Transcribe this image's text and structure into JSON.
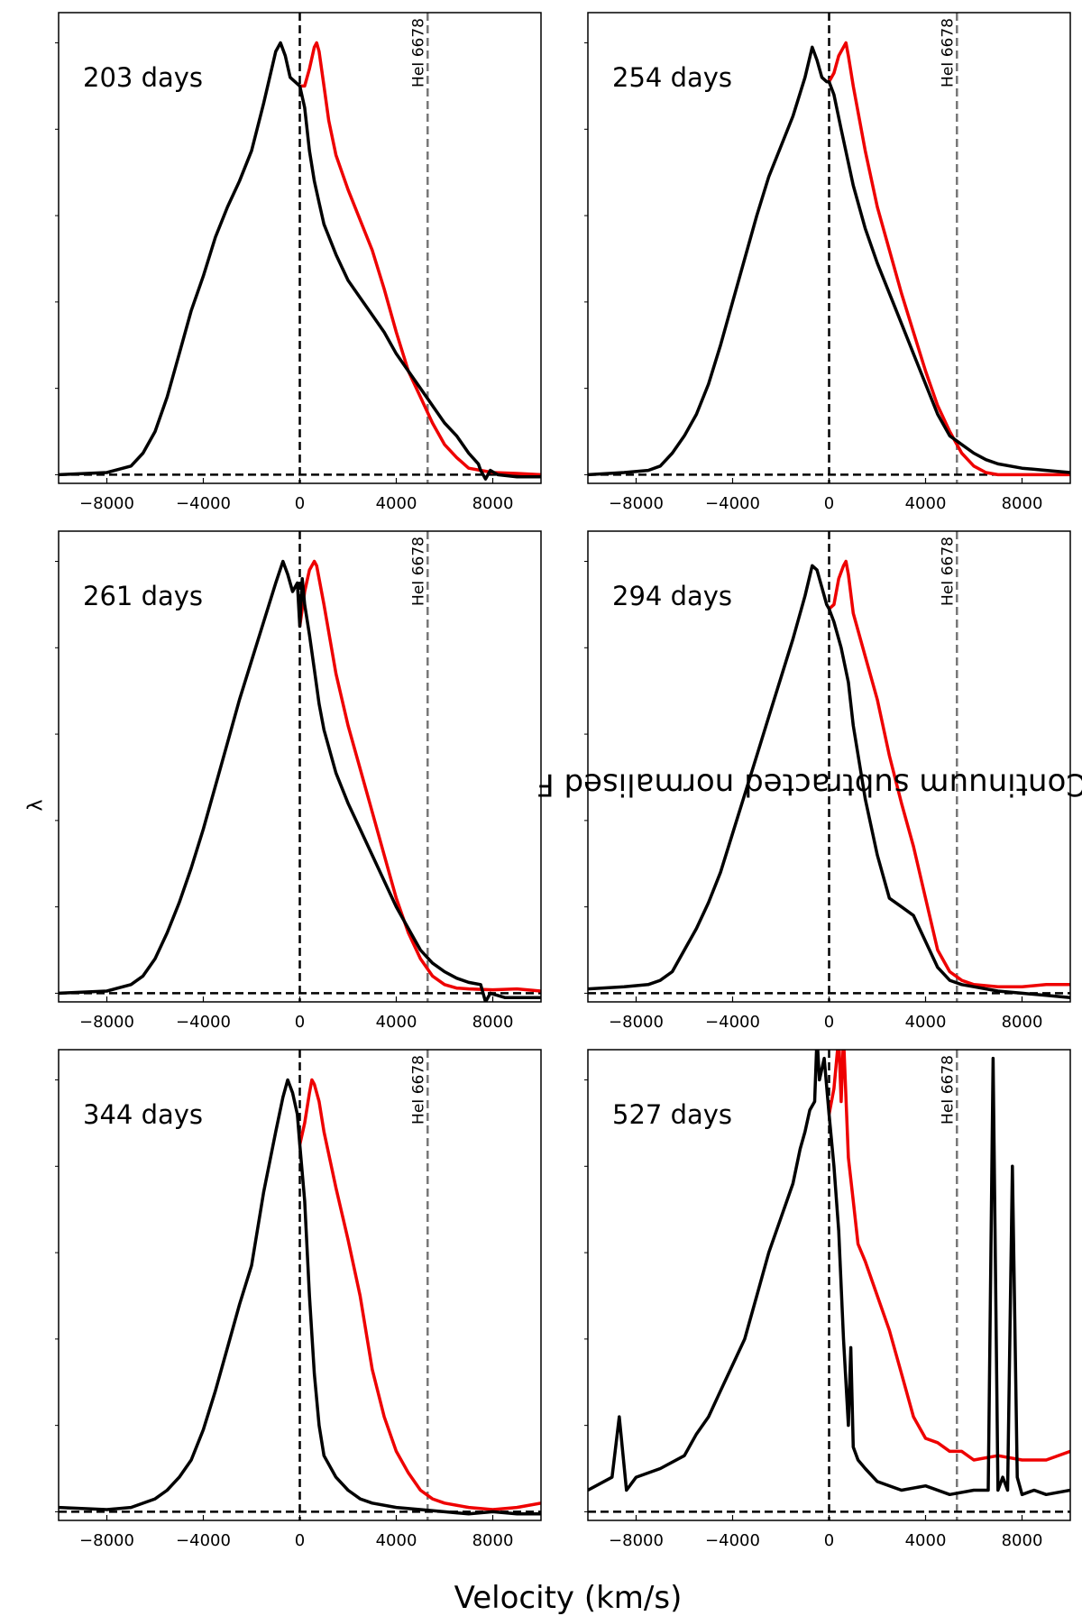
{
  "chart_data": {
    "type": "line",
    "layout": "3x2 grid of panels",
    "ylabel_main": "Continuum subtracted normalised F",
    "ylabel_sub": "λ",
    "xlabel": "Velocity (km/s)",
    "xlim": [
      -10000,
      10000
    ],
    "ylim": [
      -0.02,
      1.07
    ],
    "xticks": [
      -8000,
      -4000,
      0,
      4000,
      8000
    ],
    "xtick_labels": [
      "−8000",
      "−4000",
      "0",
      "4000",
      "8000"
    ],
    "reference_line": {
      "label": "HeI 6678",
      "velocity": 5300,
      "color": "#777777",
      "style": "dashed"
    },
    "zero_lines": {
      "x": 0,
      "y": 0,
      "color": "#000000",
      "style": "dashed"
    },
    "series_colors": {
      "black": "#000000",
      "red": "#ee0000"
    },
    "panels": [
      {
        "label": "203 days",
        "series": [
          {
            "color": "black",
            "x": [
              -10000,
              -8000,
              -7000,
              -6500,
              -6000,
              -5500,
              -5000,
              -4500,
              -4000,
              -3500,
              -3000,
              -2500,
              -2000,
              -1500,
              -1000,
              -800,
              -600,
              -400,
              -200,
              0,
              200,
              400,
              600,
              800,
              1000,
              1500,
              2000,
              2500,
              3000,
              3500,
              4000,
              4500,
              5000,
              5500,
              6000,
              6500,
              7000,
              7400,
              7500,
              7700,
              7900,
              8200,
              9000,
              10000
            ],
            "y": [
              0,
              0.005,
              0.02,
              0.05,
              0.1,
              0.18,
              0.28,
              0.38,
              0.46,
              0.55,
              0.62,
              0.68,
              0.75,
              0.86,
              0.98,
              1.0,
              0.97,
              0.92,
              0.91,
              0.9,
              0.85,
              0.75,
              0.68,
              0.63,
              0.58,
              0.51,
              0.45,
              0.41,
              0.37,
              0.33,
              0.28,
              0.24,
              0.2,
              0.16,
              0.12,
              0.09,
              0.05,
              0.025,
              0.01,
              -0.01,
              0.01,
              0.0,
              -0.005,
              -0.005
            ]
          },
          {
            "color": "red",
            "x": [
              0,
              200,
              400,
              600,
              700,
              800,
              1000,
              1200,
              1500,
              2000,
              2500,
              3000,
              3500,
              4000,
              4500,
              5000,
              5500,
              6000,
              6500,
              7000,
              8000,
              9000,
              10000
            ],
            "y": [
              0.9,
              0.9,
              0.94,
              0.99,
              1.0,
              0.98,
              0.9,
              0.82,
              0.74,
              0.66,
              0.59,
              0.52,
              0.43,
              0.33,
              0.24,
              0.18,
              0.12,
              0.07,
              0.04,
              0.015,
              0.005,
              0.003,
              0.0
            ]
          }
        ]
      },
      {
        "label": "254 days",
        "series": [
          {
            "color": "black",
            "x": [
              -10000,
              -8500,
              -7500,
              -7000,
              -6500,
              -6000,
              -5500,
              -5000,
              -4500,
              -4000,
              -3500,
              -3000,
              -2500,
              -2000,
              -1500,
              -1000,
              -700,
              -500,
              -300,
              -100,
              0,
              200,
              500,
              1000,
              1500,
              2000,
              2500,
              3000,
              3500,
              4000,
              4500,
              5000,
              5500,
              6000,
              6500,
              7000,
              8000,
              9000,
              10000
            ],
            "y": [
              0,
              0.005,
              0.01,
              0.02,
              0.05,
              0.09,
              0.14,
              0.21,
              0.3,
              0.4,
              0.5,
              0.6,
              0.69,
              0.76,
              0.83,
              0.92,
              0.99,
              0.96,
              0.92,
              0.91,
              0.91,
              0.88,
              0.8,
              0.67,
              0.57,
              0.49,
              0.42,
              0.35,
              0.28,
              0.21,
              0.14,
              0.09,
              0.07,
              0.05,
              0.035,
              0.025,
              0.015,
              0.01,
              0.005
            ]
          },
          {
            "color": "red",
            "x": [
              0,
              200,
              400,
              600,
              700,
              800,
              1000,
              1500,
              2000,
              2500,
              3000,
              3500,
              4000,
              4500,
              5000,
              5500,
              6000,
              6500,
              7000,
              8000,
              9000,
              10000
            ],
            "y": [
              0.91,
              0.93,
              0.97,
              0.99,
              1.0,
              0.97,
              0.9,
              0.75,
              0.62,
              0.52,
              0.42,
              0.33,
              0.24,
              0.16,
              0.1,
              0.05,
              0.02,
              0.005,
              0.0,
              0.0,
              0.0,
              0.0
            ]
          }
        ]
      },
      {
        "label": "261 days",
        "series": [
          {
            "color": "black",
            "x": [
              -10000,
              -8000,
              -7000,
              -6500,
              -6000,
              -5500,
              -5000,
              -4500,
              -4000,
              -3500,
              -3000,
              -2500,
              -2000,
              -1500,
              -1000,
              -700,
              -500,
              -300,
              -100,
              0,
              100,
              200,
              400,
              600,
              800,
              1000,
              1500,
              2000,
              2500,
              3000,
              3500,
              4000,
              4500,
              5000,
              5500,
              6000,
              6500,
              7000,
              7500,
              7700,
              7900,
              8500,
              10000
            ],
            "y": [
              0,
              0.005,
              0.02,
              0.04,
              0.08,
              0.14,
              0.21,
              0.29,
              0.38,
              0.48,
              0.58,
              0.68,
              0.77,
              0.86,
              0.95,
              1.0,
              0.97,
              0.93,
              0.95,
              0.85,
              0.96,
              0.9,
              0.83,
              0.75,
              0.67,
              0.61,
              0.51,
              0.44,
              0.38,
              0.32,
              0.26,
              0.2,
              0.15,
              0.1,
              0.07,
              0.05,
              0.035,
              0.025,
              0.02,
              -0.02,
              0.0,
              -0.01,
              -0.01
            ]
          },
          {
            "color": "red",
            "x": [
              0,
              200,
              400,
              600,
              700,
              800,
              1000,
              1500,
              2000,
              2500,
              3000,
              3500,
              4000,
              4500,
              5000,
              5500,
              6000,
              6500,
              7000,
              8000,
              9000,
              10000
            ],
            "y": [
              0.85,
              0.93,
              0.98,
              1.0,
              0.99,
              0.96,
              0.9,
              0.74,
              0.62,
              0.52,
              0.42,
              0.32,
              0.22,
              0.14,
              0.08,
              0.04,
              0.02,
              0.012,
              0.01,
              0.008,
              0.01,
              0.005
            ]
          }
        ]
      },
      {
        "label": "294 days",
        "series": [
          {
            "color": "black",
            "x": [
              -10000,
              -8500,
              -7500,
              -7000,
              -6500,
              -6000,
              -5500,
              -5000,
              -4500,
              -4000,
              -3500,
              -3000,
              -2500,
              -2000,
              -1500,
              -1000,
              -700,
              -500,
              -300,
              -100,
              0,
              200,
              500,
              800,
              1000,
              1500,
              2000,
              2500,
              3000,
              3500,
              4000,
              4500,
              5000,
              5500,
              6000,
              7000,
              8000,
              9000,
              10000
            ],
            "y": [
              0.01,
              0.015,
              0.02,
              0.03,
              0.05,
              0.1,
              0.15,
              0.21,
              0.28,
              0.37,
              0.46,
              0.55,
              0.64,
              0.73,
              0.82,
              0.92,
              0.99,
              0.98,
              0.94,
              0.9,
              0.89,
              0.86,
              0.8,
              0.72,
              0.62,
              0.45,
              0.32,
              0.22,
              0.2,
              0.18,
              0.12,
              0.06,
              0.03,
              0.02,
              0.015,
              0.005,
              0.0,
              -0.005,
              -0.01
            ]
          },
          {
            "color": "red",
            "x": [
              0,
              200,
              400,
              600,
              700,
              800,
              1000,
              1500,
              2000,
              2500,
              3000,
              3500,
              4000,
              4500,
              5000,
              5500,
              6000,
              7000,
              8000,
              9000,
              10000
            ],
            "y": [
              0.89,
              0.9,
              0.96,
              0.99,
              1.0,
              0.97,
              0.88,
              0.78,
              0.68,
              0.55,
              0.44,
              0.34,
              0.22,
              0.1,
              0.05,
              0.03,
              0.02,
              0.015,
              0.015,
              0.02,
              0.02
            ]
          }
        ]
      },
      {
        "label": "344 days",
        "series": [
          {
            "color": "black",
            "x": [
              -10000,
              -8000,
              -7000,
              -6000,
              -5500,
              -5000,
              -4500,
              -4000,
              -3500,
              -3000,
              -2500,
              -2000,
              -1500,
              -1000,
              -700,
              -500,
              -300,
              -100,
              0,
              200,
              400,
              600,
              800,
              1000,
              1500,
              2000,
              2500,
              3000,
              4000,
              5000,
              6000,
              7000,
              8000,
              9000,
              10000
            ],
            "y": [
              0.01,
              0.005,
              0.01,
              0.03,
              0.05,
              0.08,
              0.12,
              0.19,
              0.28,
              0.38,
              0.48,
              0.57,
              0.74,
              0.88,
              0.96,
              1.0,
              0.97,
              0.92,
              0.85,
              0.72,
              0.5,
              0.32,
              0.2,
              0.13,
              0.08,
              0.05,
              0.03,
              0.02,
              0.01,
              0.005,
              0.0,
              -0.005,
              0.0,
              -0.005,
              -0.005
            ]
          },
          {
            "color": "red",
            "x": [
              0,
              200,
              400,
              500,
              600,
              800,
              1000,
              1500,
              2000,
              2500,
              3000,
              3500,
              4000,
              4500,
              5000,
              5500,
              6000,
              7000,
              8000,
              9000,
              10000
            ],
            "y": [
              0.85,
              0.9,
              0.97,
              1.0,
              0.99,
              0.95,
              0.88,
              0.75,
              0.63,
              0.5,
              0.33,
              0.22,
              0.14,
              0.09,
              0.05,
              0.03,
              0.02,
              0.01,
              0.005,
              0.01,
              0.02
            ]
          }
        ]
      },
      {
        "label": "527 days",
        "series": [
          {
            "color": "black",
            "x": [
              -10000,
              -9000,
              -8700,
              -8400,
              -8000,
              -7000,
              -6000,
              -5500,
              -5000,
              -4500,
              -4000,
              -3500,
              -3000,
              -2500,
              -2000,
              -1500,
              -1200,
              -1000,
              -800,
              -600,
              -500,
              -400,
              -200,
              0,
              200,
              400,
              600,
              800,
              900,
              1000,
              1200,
              1500,
              2000,
              3000,
              4000,
              5000,
              6000,
              6600,
              6800,
              7000,
              7200,
              7400,
              7600,
              7800,
              8000,
              8500,
              9000,
              10000
            ],
            "y": [
              0.05,
              0.08,
              0.22,
              0.05,
              0.08,
              0.1,
              0.13,
              0.18,
              0.22,
              0.28,
              0.34,
              0.4,
              0.5,
              0.6,
              0.68,
              0.76,
              0.84,
              0.88,
              0.93,
              0.95,
              1.1,
              1.0,
              1.05,
              0.92,
              0.8,
              0.65,
              0.4,
              0.2,
              0.38,
              0.15,
              0.12,
              0.1,
              0.07,
              0.05,
              0.06,
              0.04,
              0.05,
              0.05,
              1.05,
              0.05,
              0.08,
              0.05,
              0.8,
              0.08,
              0.04,
              0.05,
              0.04,
              0.05
            ]
          },
          {
            "color": "red",
            "x": [
              0,
              200,
              400,
              500,
              600,
              800,
              1000,
              1200,
              1500,
              2000,
              2500,
              3000,
              3500,
              4000,
              4500,
              5000,
              5500,
              6000,
              7000,
              8000,
              9000,
              10000
            ],
            "y": [
              0.92,
              0.98,
              1.1,
              0.95,
              1.1,
              0.82,
              0.72,
              0.62,
              0.58,
              0.5,
              0.42,
              0.32,
              0.22,
              0.17,
              0.16,
              0.14,
              0.14,
              0.12,
              0.13,
              0.12,
              0.12,
              0.14
            ]
          }
        ]
      }
    ]
  }
}
